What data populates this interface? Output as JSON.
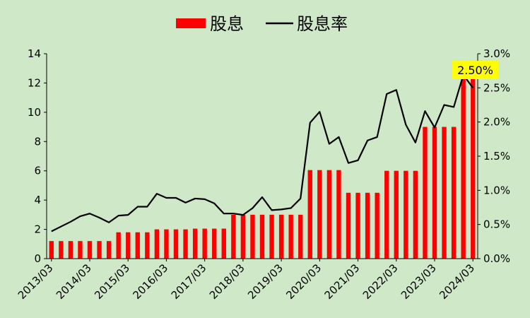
{
  "chart_data": {
    "type": "bar",
    "legend": {
      "placement": "top-center",
      "items": [
        {
          "name": "股息",
          "kind": "bar",
          "color": "#ff0000"
        },
        {
          "name": "股息率",
          "kind": "line",
          "color": "#000000"
        }
      ]
    },
    "x_tick_labels": [
      "2013/03",
      "2014/03",
      "2015/03",
      "2016/03",
      "2017/03",
      "2018/03",
      "2019/03",
      "2020/03",
      "2021/03",
      "2022/03",
      "2023/03",
      "2024/03"
    ],
    "y_left": {
      "min": 0,
      "max": 14,
      "step": 2,
      "tick_labels": [
        "0",
        "2",
        "4",
        "6",
        "8",
        "10",
        "12",
        "14"
      ]
    },
    "y_right": {
      "min": 0.0,
      "max": 0.03,
      "step": 0.005,
      "tick_labels": [
        "0.0%",
        "0.5%",
        "1.0%",
        "1.5%",
        "2.0%",
        "2.5%",
        "3.0%"
      ]
    },
    "grid": false,
    "series": [
      {
        "name": "股息",
        "type": "bar",
        "axis": "left",
        "color": "#ff0000",
        "values": [
          1.2,
          1.2,
          1.2,
          1.2,
          1.2,
          1.2,
          1.2,
          1.8,
          1.8,
          1.8,
          1.8,
          2.0,
          2.0,
          2.0,
          2.0,
          2.05,
          2.05,
          2.05,
          2.05,
          3.0,
          3.0,
          3.0,
          3.0,
          3.0,
          3.0,
          3.0,
          3.0,
          6.05,
          6.05,
          6.05,
          6.05,
          4.5,
          4.5,
          4.5,
          4.5,
          6.0,
          6.0,
          6.0,
          6.0,
          9.0,
          9.0,
          9.0,
          9.0,
          12.5,
          12.5
        ]
      },
      {
        "name": "股息率",
        "type": "line",
        "axis": "right",
        "color": "#000000",
        "values": [
          0.004,
          0.0047,
          0.0054,
          0.0062,
          0.0066,
          0.006,
          0.0053,
          0.0063,
          0.0064,
          0.0076,
          0.0076,
          0.0095,
          0.0089,
          0.0089,
          0.0082,
          0.0088,
          0.0087,
          0.0081,
          0.0066,
          0.0066,
          0.0064,
          0.0074,
          0.009,
          0.0071,
          0.0072,
          0.0074,
          0.0088,
          0.0199,
          0.0215,
          0.0168,
          0.0178,
          0.014,
          0.0144,
          0.0173,
          0.0178,
          0.0241,
          0.0247,
          0.0196,
          0.017,
          0.0216,
          0.0192,
          0.0225,
          0.0222,
          0.0269,
          0.025
        ]
      }
    ],
    "annotation": {
      "text": "2.50%",
      "background": "#ffff00"
    }
  }
}
